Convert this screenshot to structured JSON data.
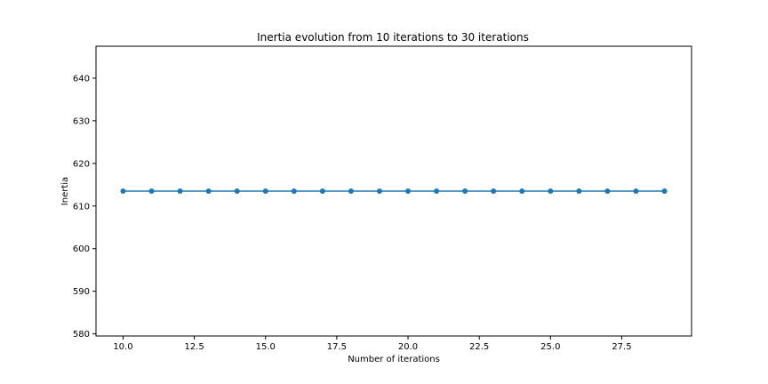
{
  "chart_data": {
    "type": "line",
    "title": "Inertia evolution from 10 iterations to 30 iterations",
    "xlabel": "Number of iterations",
    "ylabel": "Inertia",
    "xlim": [
      9.05,
      29.95
    ],
    "ylim": [
      579.5,
      647.5
    ],
    "xticks": [
      10.0,
      12.5,
      15.0,
      17.5,
      20.0,
      22.5,
      25.0,
      27.5
    ],
    "xtick_labels": [
      "10.0",
      "12.5",
      "15.0",
      "17.5",
      "20.0",
      "22.5",
      "25.0",
      "27.5"
    ],
    "yticks": [
      580,
      590,
      600,
      610,
      620,
      630,
      640
    ],
    "ytick_labels": [
      "580",
      "590",
      "600",
      "610",
      "620",
      "630",
      "640"
    ],
    "grid": false,
    "legend": false,
    "series": [
      {
        "color": "#1f77b4",
        "marker": "circle",
        "x": [
          10,
          11,
          12,
          13,
          14,
          15,
          16,
          17,
          18,
          19,
          20,
          21,
          22,
          23,
          24,
          25,
          26,
          27,
          28,
          29
        ],
        "y": [
          613.5,
          613.5,
          613.5,
          613.5,
          613.5,
          613.5,
          613.5,
          613.5,
          613.5,
          613.5,
          613.5,
          613.5,
          613.5,
          613.5,
          613.5,
          613.5,
          613.5,
          613.5,
          613.5,
          613.5
        ]
      }
    ]
  }
}
